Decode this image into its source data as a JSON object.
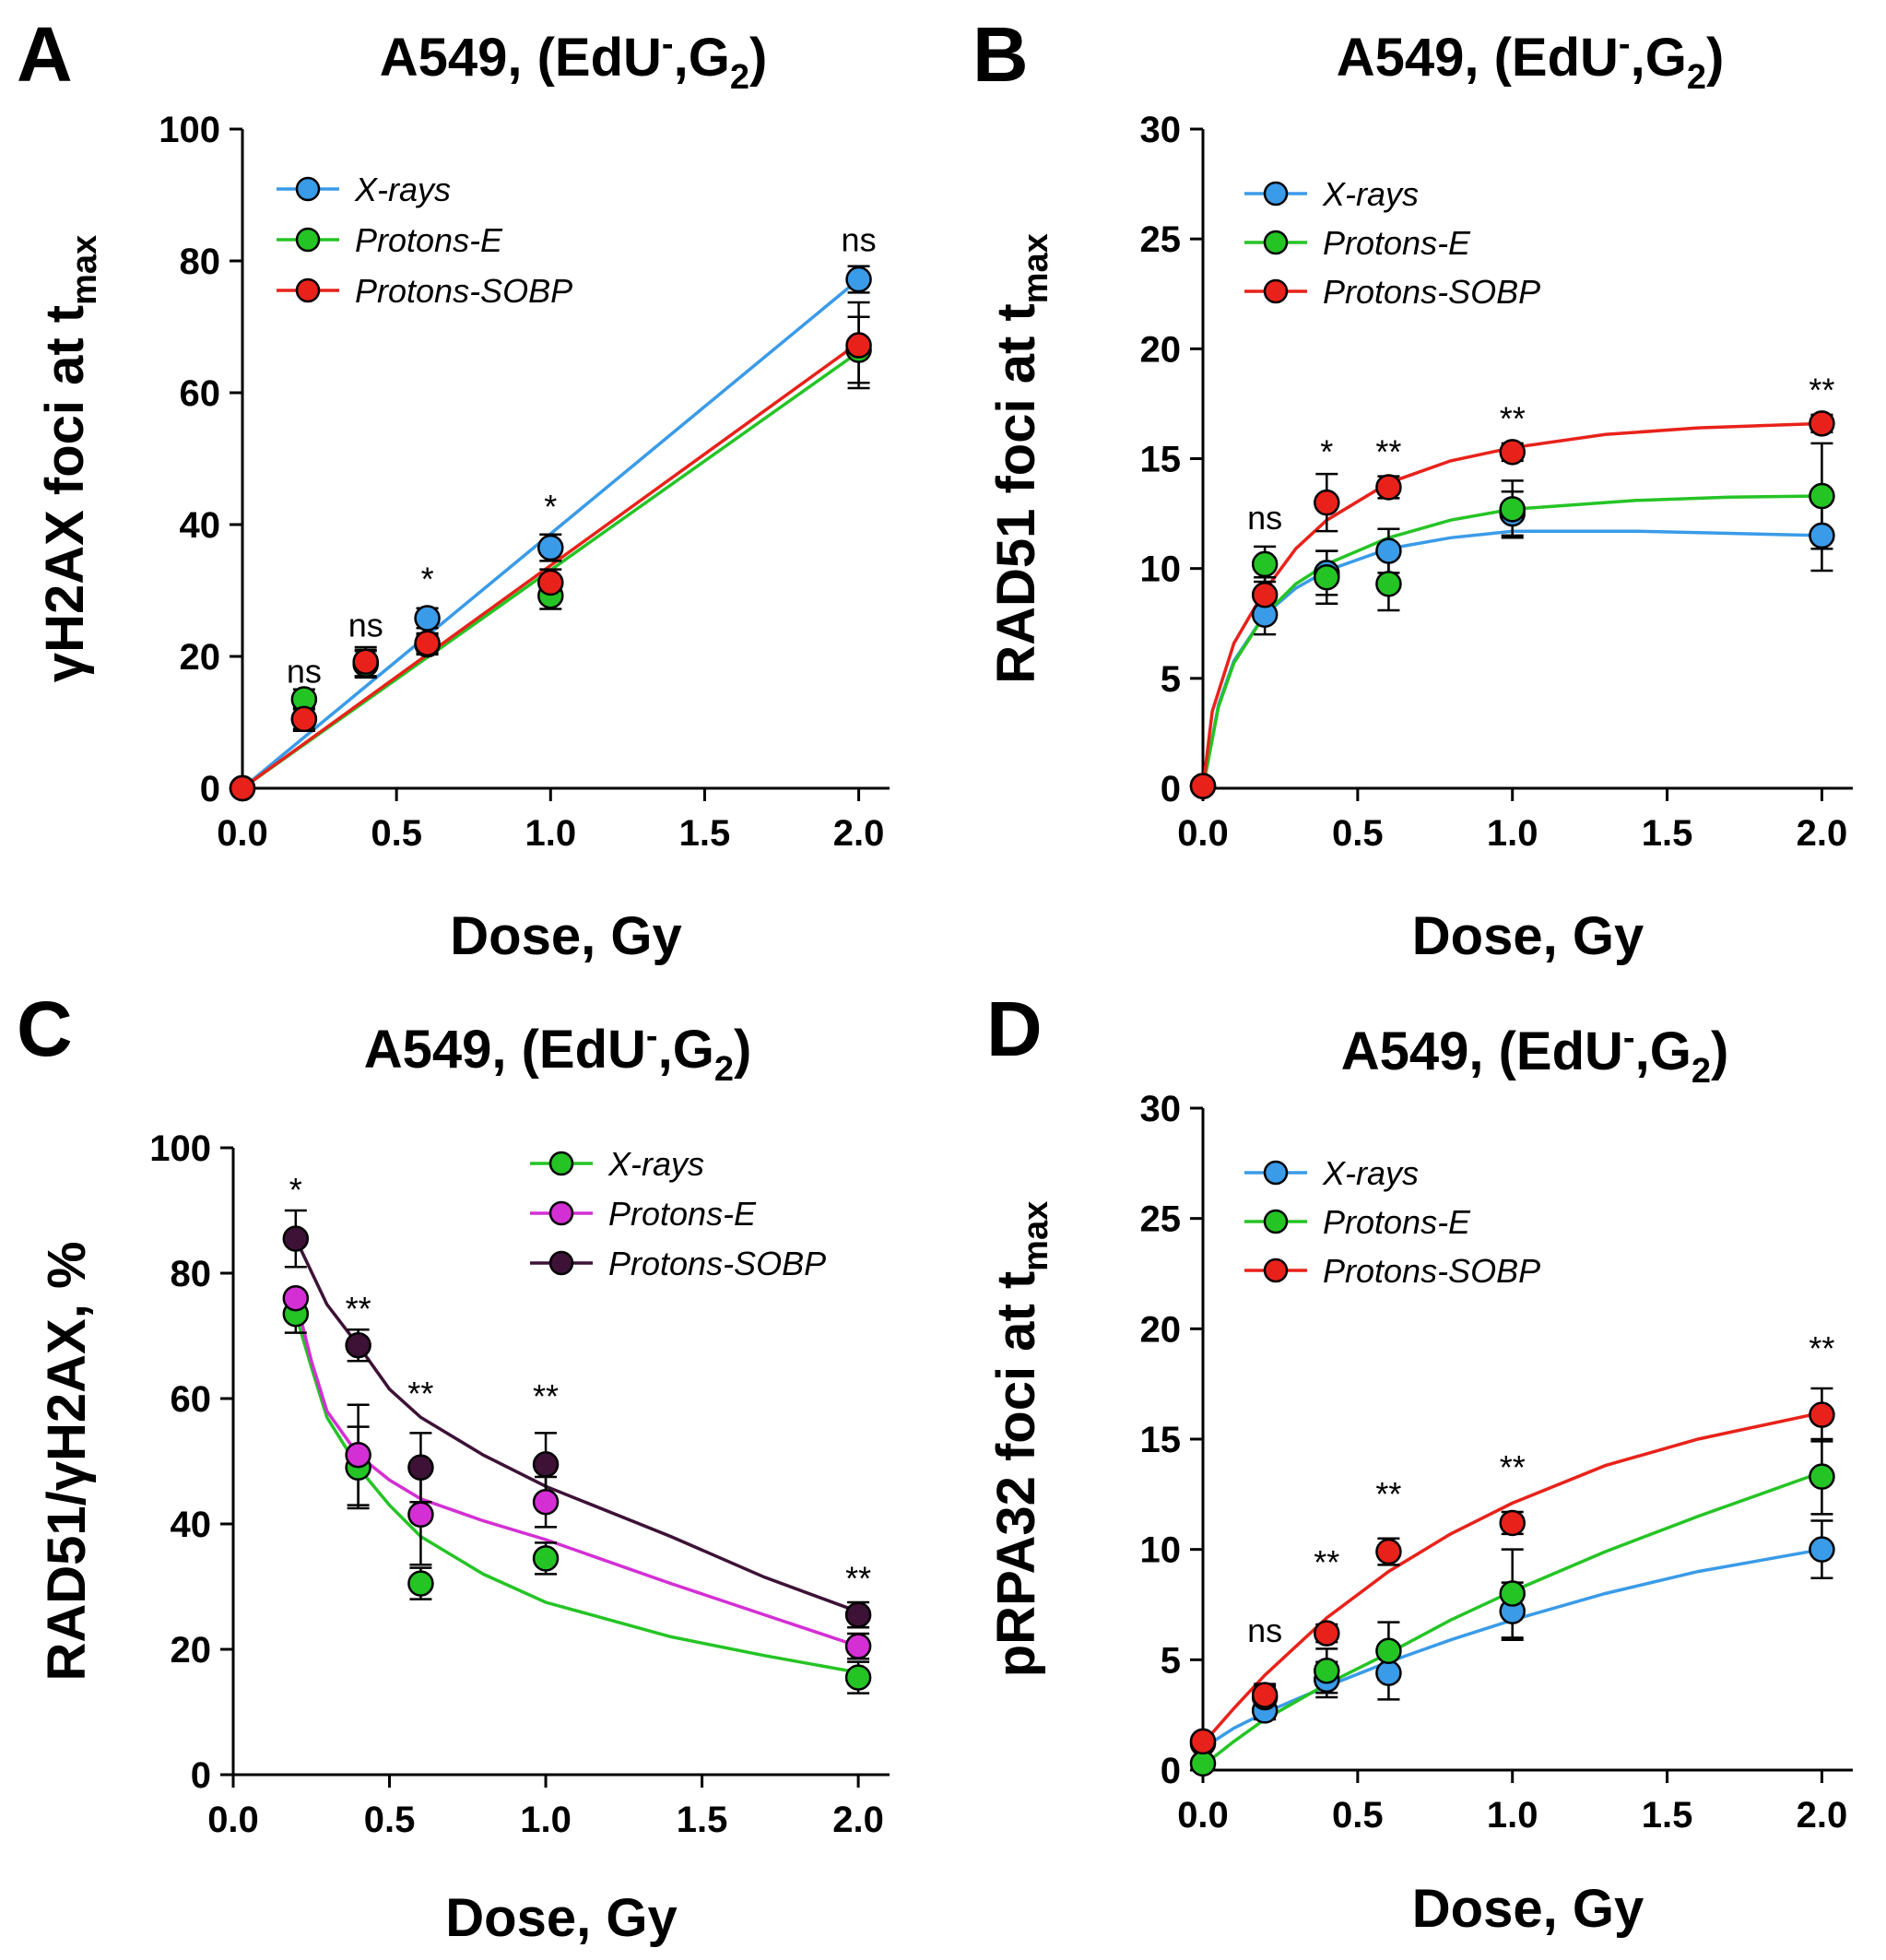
{
  "chart_data": [
    {
      "type": "scatter",
      "panel": "A",
      "title": "A549, (EdU-,G2)",
      "title_parts": {
        "main": "A549, (EdU",
        "sup": "-",
        "mid": ",G",
        "sub": "2",
        "end": ")"
      },
      "ylabel_parts": {
        "main": "γH2AX foci at t",
        "sub": "max"
      },
      "xlabel": "Dose, Gy",
      "xlim": [
        0,
        2.1
      ],
      "ylim": [
        0,
        100
      ],
      "xticks": [
        "0.0",
        "0.5",
        "1.0",
        "1.5",
        "2.0"
      ],
      "yticks": [
        "0",
        "20",
        "40",
        "60",
        "80",
        "100"
      ],
      "legend_position": "top-left",
      "x": [
        0,
        0.2,
        0.4,
        0.6,
        1.0,
        2.0
      ],
      "series": [
        {
          "name": "X-rays",
          "color": "#3a9be8",
          "values": [
            0,
            10.5,
            19,
            25.8,
            36.5,
            77.2
          ],
          "err": [
            0,
            1.5,
            2,
            1.5,
            2,
            2
          ],
          "fit": "linear",
          "fit_end": 77.2
        },
        {
          "name": "Protons-E",
          "color": "#25c425",
          "values": [
            0,
            13.5,
            18.8,
            21.8,
            29.2,
            66.5
          ],
          "err": [
            0,
            1.5,
            2,
            1.5,
            2,
            5
          ],
          "fit": "linear",
          "fit_end": 66.2
        },
        {
          "name": "Protons-SOBP",
          "color": "#e8221a",
          "values": [
            0,
            10.5,
            19.2,
            22,
            31.2,
            67.2
          ],
          "err": [
            0,
            1.8,
            2.2,
            1.5,
            2,
            6.5
          ],
          "fit": "linear",
          "fit_end": 67.6
        }
      ],
      "annotations": [
        {
          "x": 0.2,
          "y": 16,
          "text": "ns"
        },
        {
          "x": 0.4,
          "y": 23,
          "text": "ns"
        },
        {
          "x": 0.6,
          "y": 30,
          "text": "*"
        },
        {
          "x": 1.0,
          "y": 41,
          "text": "*"
        },
        {
          "x": 2.0,
          "y": 81.5,
          "text": "ns"
        }
      ]
    },
    {
      "type": "scatter",
      "panel": "B",
      "title": "A549, (EdU-,G2)",
      "title_parts": {
        "main": "A549, (EdU",
        "sup": "-",
        "mid": ",G",
        "sub": "2",
        "end": ")"
      },
      "ylabel_parts": {
        "main": "RAD51 foci at t",
        "sub": "max"
      },
      "xlabel": "Dose, Gy",
      "xlim": [
        0,
        2.1
      ],
      "ylim": [
        0,
        30
      ],
      "xticks": [
        "0.0",
        "0.5",
        "1.0",
        "1.5",
        "2.0"
      ],
      "yticks": [
        "0",
        "5",
        "10",
        "15",
        "20",
        "25",
        "30"
      ],
      "legend_position": "top-left",
      "x": [
        0,
        0.2,
        0.4,
        0.6,
        1.0,
        2.0
      ],
      "series": [
        {
          "name": "X-rays",
          "color": "#3a9be8",
          "values": [
            0.1,
            7.9,
            9.8,
            10.8,
            12.5,
            11.5
          ],
          "err": [
            0,
            0.9,
            1.0,
            1.0,
            1.0,
            1.6
          ],
          "fit": "curve",
          "fit_points": [
            [
              0,
              0
            ],
            [
              0.05,
              3.8
            ],
            [
              0.1,
              5.8
            ],
            [
              0.2,
              7.9
            ],
            [
              0.3,
              9.1
            ],
            [
              0.4,
              9.9
            ],
            [
              0.6,
              10.9
            ],
            [
              0.8,
              11.4
            ],
            [
              1.0,
              11.7
            ],
            [
              1.4,
              11.7
            ],
            [
              1.7,
              11.6
            ],
            [
              2.0,
              11.5
            ]
          ]
        },
        {
          "name": "Protons-E",
          "color": "#25c425",
          "values": [
            0.1,
            10.2,
            9.6,
            9.3,
            12.7,
            13.3
          ],
          "err": [
            0,
            0.8,
            1.2,
            1.2,
            1.3,
            2.4
          ],
          "fit": "curve",
          "fit_points": [
            [
              0,
              0
            ],
            [
              0.05,
              3.7
            ],
            [
              0.1,
              5.7
            ],
            [
              0.2,
              7.9
            ],
            [
              0.3,
              9.3
            ],
            [
              0.4,
              10.2
            ],
            [
              0.6,
              11.4
            ],
            [
              0.8,
              12.2
            ],
            [
              1.0,
              12.7
            ],
            [
              1.4,
              13.1
            ],
            [
              1.7,
              13.25
            ],
            [
              2.0,
              13.3
            ]
          ]
        },
        {
          "name": "Protons-SOBP",
          "color": "#e8221a",
          "values": [
            0.1,
            8.8,
            13.0,
            13.7,
            15.3,
            16.6
          ],
          "err": [
            0,
            0.8,
            1.3,
            0.5,
            0.4,
            0.4
          ],
          "fit": "curve",
          "fit_points": [
            [
              0,
              0
            ],
            [
              0.03,
              3.5
            ],
            [
              0.1,
              6.6
            ],
            [
              0.2,
              9.0
            ],
            [
              0.3,
              10.9
            ],
            [
              0.4,
              12.2
            ],
            [
              0.6,
              13.9
            ],
            [
              0.8,
              14.9
            ],
            [
              1.0,
              15.5
            ],
            [
              1.3,
              16.1
            ],
            [
              1.6,
              16.4
            ],
            [
              2.0,
              16.6
            ]
          ]
        }
      ],
      "annotations": [
        {
          "x": 0.2,
          "y": 11.8,
          "text": "ns"
        },
        {
          "x": 0.4,
          "y": 14.8,
          "text": "*"
        },
        {
          "x": 0.6,
          "y": 14.8,
          "text": "**"
        },
        {
          "x": 1.0,
          "y": 16.3,
          "text": "**"
        },
        {
          "x": 2.0,
          "y": 17.6,
          "text": "**"
        }
      ]
    },
    {
      "type": "scatter",
      "panel": "C",
      "title": "A549, (EdU-,G2)",
      "title_parts": {
        "main": "A549, (EdU",
        "sup": "-",
        "mid": ",G",
        "sub": "2",
        "end": ")"
      },
      "ylabel_parts": {
        "main": "RAD51/γH2AX, %",
        "sub": ""
      },
      "xlabel": "Dose, Gy",
      "xlim": [
        0,
        2.1
      ],
      "ylim": [
        0,
        100
      ],
      "xticks": [
        "0.0",
        "0.5",
        "1.0",
        "1.5",
        "2.0"
      ],
      "yticks": [
        "0",
        "20",
        "40",
        "60",
        "80",
        "100"
      ],
      "legend_position": "top-right",
      "x": [
        0.2,
        0.4,
        0.6,
        1.0,
        2.0
      ],
      "series": [
        {
          "name": "X-rays",
          "color": "#25c425",
          "values": [
            73.5,
            49,
            30.5,
            34.5,
            15.5
          ],
          "err": [
            3,
            6.5,
            2.5,
            2.5,
            2.5
          ],
          "fit": "curve",
          "fit_points": [
            [
              0.2,
              73.5
            ],
            [
              0.25,
              65
            ],
            [
              0.3,
              57
            ],
            [
              0.4,
              49
            ],
            [
              0.5,
              43
            ],
            [
              0.6,
              38
            ],
            [
              0.8,
              32
            ],
            [
              1.0,
              27.5
            ],
            [
              1.4,
              22
            ],
            [
              1.7,
              19
            ],
            [
              2.0,
              16.3
            ]
          ]
        },
        {
          "name": "Protons-E",
          "color": "#d42fd4",
          "values": [
            76,
            51,
            41.5,
            43.5,
            20.5
          ],
          "err": [
            0,
            8,
            8,
            4,
            2
          ],
          "fit": "curve",
          "fit_points": [
            [
              0.2,
              76
            ],
            [
              0.25,
              66
            ],
            [
              0.3,
              58
            ],
            [
              0.4,
              51
            ],
            [
              0.5,
              47
            ],
            [
              0.6,
              44
            ],
            [
              0.8,
              40.5
            ],
            [
              1.0,
              37.5
            ],
            [
              1.4,
              30.5
            ],
            [
              1.7,
              25.5
            ],
            [
              2.0,
              20.5
            ]
          ]
        },
        {
          "name": "Protons-SOBP",
          "color": "#3d1236",
          "values": [
            85.5,
            68.5,
            49,
            49.5,
            25.5
          ],
          "err": [
            4.5,
            2.5,
            5.5,
            5,
            2
          ],
          "fit": "curve",
          "fit_points": [
            [
              0.2,
              85.5
            ],
            [
              0.3,
              75
            ],
            [
              0.4,
              68.5
            ],
            [
              0.5,
              61.5
            ],
            [
              0.6,
              57
            ],
            [
              0.8,
              51
            ],
            [
              1.0,
              46
            ],
            [
              1.4,
              38
            ],
            [
              1.7,
              31.5
            ],
            [
              2.0,
              26
            ]
          ]
        }
      ],
      "annotations": [
        {
          "x": 0.2,
          "y": 91.5,
          "text": "*"
        },
        {
          "x": 0.4,
          "y": 72.5,
          "text": "**"
        },
        {
          "x": 0.6,
          "y": 59,
          "text": "**"
        },
        {
          "x": 1.0,
          "y": 58.5,
          "text": "**"
        },
        {
          "x": 2.0,
          "y": 29.5,
          "text": "**"
        }
      ]
    },
    {
      "type": "scatter",
      "panel": "D",
      "title": "A549, (EdU-,G2)",
      "title_parts": {
        "main": "A549, (EdU",
        "sup": "-",
        "mid": ",G",
        "sub": "2",
        "end": ")"
      },
      "ylabel_parts": {
        "main": "pRPA32 foci at t",
        "sub": "max"
      },
      "xlabel": "Dose, Gy",
      "xlim": [
        0,
        2.1
      ],
      "ylim": [
        0,
        30
      ],
      "xticks": [
        "0.0",
        "0.5",
        "1.0",
        "1.5",
        "2.0"
      ],
      "yticks": [
        "0",
        "5",
        "10",
        "15",
        "20",
        "25",
        "30"
      ],
      "legend_position": "top-left",
      "x": [
        0,
        0.2,
        0.4,
        0.6,
        1.0,
        2.0
      ],
      "series": [
        {
          "name": "X-rays",
          "color": "#3a9be8",
          "values": [
            1.2,
            2.7,
            4.1,
            4.4,
            7.2,
            10.0
          ],
          "err": [
            0,
            0.4,
            0.8,
            1.2,
            1.3,
            1.3
          ],
          "fit": "curve",
          "fit_points": [
            [
              0,
              1.0
            ],
            [
              0.1,
              1.9
            ],
            [
              0.2,
              2.6
            ],
            [
              0.4,
              3.8
            ],
            [
              0.6,
              4.9
            ],
            [
              0.8,
              5.9
            ],
            [
              1.0,
              6.8
            ],
            [
              1.3,
              8.0
            ],
            [
              1.6,
              9.0
            ],
            [
              2.0,
              10.0
            ]
          ]
        },
        {
          "name": "Protons-E",
          "color": "#25c425",
          "values": [
            0.3,
            3.3,
            4.5,
            5.4,
            8.0,
            13.3
          ],
          "err": [
            0,
            0.5,
            1.0,
            1.3,
            2.0,
            1.7
          ],
          "fit": "curve",
          "fit_points": [
            [
              0,
              0.2
            ],
            [
              0.1,
              1.3
            ],
            [
              0.2,
              2.3
            ],
            [
              0.4,
              3.9
            ],
            [
              0.6,
              5.3
            ],
            [
              0.8,
              6.8
            ],
            [
              1.0,
              8.1
            ],
            [
              1.3,
              9.9
            ],
            [
              1.6,
              11.5
            ],
            [
              2.0,
              13.5
            ]
          ]
        },
        {
          "name": "Protons-SOBP",
          "color": "#e8221a",
          "values": [
            1.3,
            3.4,
            6.2,
            9.9,
            11.2,
            16.1
          ],
          "err": [
            0,
            0.5,
            0.4,
            0.6,
            0.5,
            1.2
          ],
          "fit": "curve",
          "fit_points": [
            [
              0,
              1.2
            ],
            [
              0.1,
              2.8
            ],
            [
              0.2,
              4.3
            ],
            [
              0.4,
              6.9
            ],
            [
              0.6,
              9.0
            ],
            [
              0.8,
              10.7
            ],
            [
              1.0,
              12.1
            ],
            [
              1.3,
              13.8
            ],
            [
              1.6,
              15.0
            ],
            [
              2.0,
              16.2
            ]
          ]
        }
      ],
      "annotations": [
        {
          "x": 0.2,
          "y": 5.8,
          "text": "ns"
        },
        {
          "x": 0.4,
          "y": 8.9,
          "text": "**"
        },
        {
          "x": 0.6,
          "y": 12.0,
          "text": "**"
        },
        {
          "x": 1.0,
          "y": 13.2,
          "text": "**"
        },
        {
          "x": 2.0,
          "y": 18.6,
          "text": "**"
        }
      ]
    }
  ]
}
